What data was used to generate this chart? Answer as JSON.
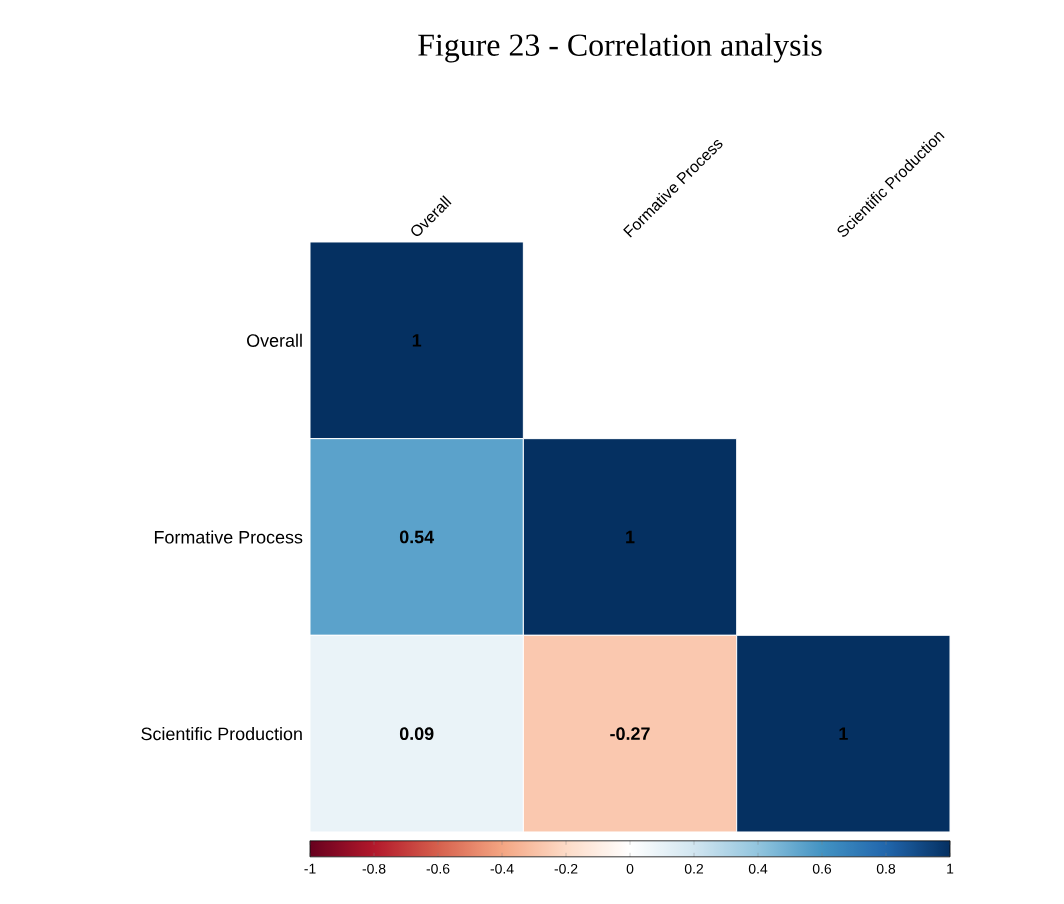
{
  "chart_data": {
    "type": "heatmap",
    "title": "Figure 23 - Correlation analysis",
    "categories": [
      "Overall",
      "Formative Process",
      "Scientific Production"
    ],
    "y_categories": [
      "Overall",
      "Formative Process",
      "Scientific Production"
    ],
    "cells": [
      [
        1,
        null,
        null
      ],
      [
        0.54,
        1,
        null
      ],
      [
        0.09,
        -0.27,
        1
      ]
    ],
    "clim": [
      -1,
      1
    ],
    "cticks": [
      -1,
      -0.8,
      -0.6,
      -0.4,
      -0.2,
      0,
      0.2,
      0.4,
      0.6,
      0.8,
      1
    ],
    "data_labels": true
  }
}
